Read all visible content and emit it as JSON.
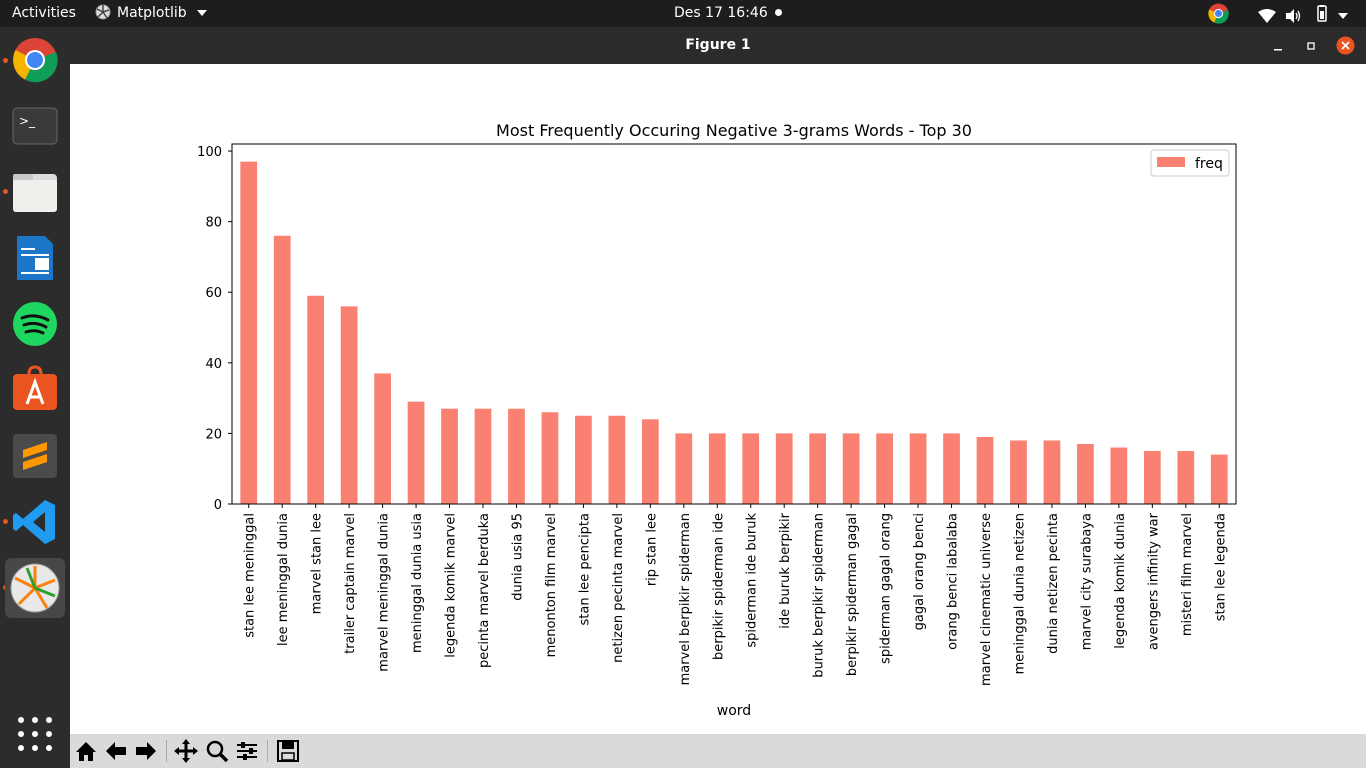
{
  "topbar": {
    "activities": "Activities",
    "app_name": "Matplotlib",
    "clock": "Des 17  16:46"
  },
  "window": {
    "title": "Figure 1"
  },
  "chart_data": {
    "type": "bar",
    "title": "Most Frequently Occuring Negative 3-grams Words - Top 30",
    "xlabel": "word",
    "ylabel": "",
    "ylim": [
      0,
      102
    ],
    "yticks": [
      0,
      20,
      40,
      60,
      80,
      100
    ],
    "legend": "top-right",
    "grid": false,
    "bar_color": "#fa8072",
    "categories": [
      "stan lee meninggal",
      "lee meninggal dunia",
      "marvel stan lee",
      "trailer captain marvel",
      "marvel meninggal dunia",
      "meninggal dunia usia",
      "legenda komik marvel",
      "pecinta marvel berduka",
      "dunia usia 95",
      "menonton film marvel",
      "stan lee pencipta",
      "netizen pecinta marvel",
      "rip stan lee",
      "marvel berpikir spiderman",
      "berpikir spiderman ide",
      "spiderman ide buruk",
      "ide buruk berpikir",
      "buruk berpikir spiderman",
      "berpikir spiderman gagal",
      "spiderman gagal orang",
      "gagal orang benci",
      "orang benci labalaba",
      "marvel cinematic universe",
      "meninggal dunia netizen",
      "dunia netizen pecinta",
      "marvel city surabaya",
      "legenda komik dunia",
      "avengers infinity war",
      "misteri film marvel",
      "stan lee legenda"
    ],
    "series": [
      {
        "name": "freq",
        "values": [
          97,
          76,
          59,
          56,
          37,
          29,
          27,
          27,
          27,
          26,
          25,
          25,
          24,
          20,
          20,
          20,
          20,
          20,
          20,
          20,
          20,
          20,
          19,
          18,
          18,
          17,
          16,
          15,
          15,
          14
        ]
      }
    ]
  }
}
